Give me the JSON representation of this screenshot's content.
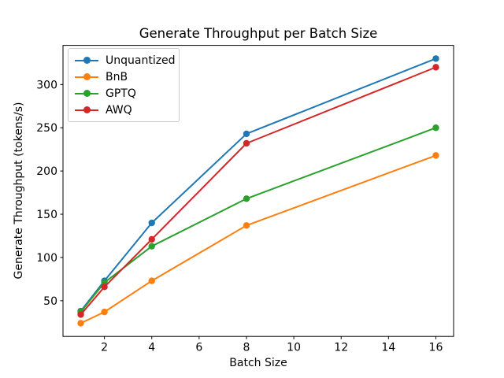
{
  "figure": {
    "title": "Generate Throughput per Batch Size",
    "xlabel": "Batch Size",
    "ylabel": "Generate Throughput (tokens/s)"
  },
  "chart_data": {
    "type": "line",
    "title": "Generate Throughput per Batch Size",
    "xlabel": "Batch Size",
    "ylabel": "Generate Throughput (tokens/s)",
    "x": [
      1,
      2,
      4,
      8,
      16
    ],
    "series": [
      {
        "name": "Unquantized",
        "color": "#1f77b4",
        "values": [
          38,
          73,
          140,
          243,
          330
        ]
      },
      {
        "name": "BnB",
        "color": "#ff7f0e",
        "values": [
          24,
          37,
          73,
          137,
          218
        ]
      },
      {
        "name": "GPTQ",
        "color": "#2ca02c",
        "values": [
          37,
          71,
          113,
          168,
          250
        ]
      },
      {
        "name": "AWQ",
        "color": "#d62728",
        "values": [
          34,
          66,
          121,
          232,
          320
        ]
      }
    ],
    "x_ticks": [
      2,
      4,
      6,
      8,
      10,
      12,
      14,
      16
    ],
    "y_ticks": [
      50,
      100,
      150,
      200,
      250,
      300
    ],
    "xlim": [
      0.25,
      16.75
    ],
    "ylim": [
      8.7,
      345.3
    ],
    "grid": false,
    "marker": "o",
    "legend_position": "upper-left",
    "axis_color": "#000000"
  }
}
